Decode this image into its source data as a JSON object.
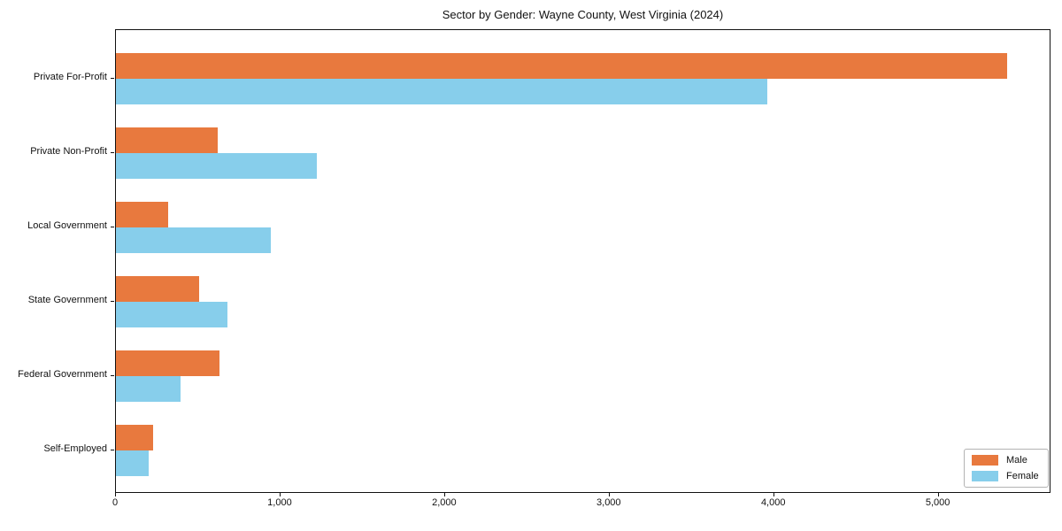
{
  "chart_data": {
    "type": "bar",
    "orientation": "horizontal",
    "title": "Sector by Gender: Wayne County, West Virginia (2024)",
    "categories": [
      "Private For-Profit",
      "Private Non-Profit",
      "Local Government",
      "State Government",
      "Federal Government",
      "Self-Employed"
    ],
    "series": [
      {
        "name": "Male",
        "color": "#e8793e",
        "values": [
          5415,
          620,
          315,
          505,
          630,
          228
        ]
      },
      {
        "name": "Female",
        "color": "#87ceeb",
        "values": [
          3960,
          1220,
          940,
          680,
          395,
          200
        ]
      }
    ],
    "xlabel": "",
    "ylabel": "",
    "x_ticks": [
      0,
      1000,
      2000,
      3000,
      4000,
      5000
    ],
    "x_tick_labels": [
      "0",
      "1,000",
      "2,000",
      "3,000",
      "4,000",
      "5,000"
    ],
    "xlim": [
      0,
      5685
    ],
    "grid": false,
    "legend": {
      "position": "lower right",
      "entries": [
        "Male",
        "Female"
      ]
    },
    "colors": {
      "spine": "#111111",
      "background": "#ffffff"
    }
  }
}
